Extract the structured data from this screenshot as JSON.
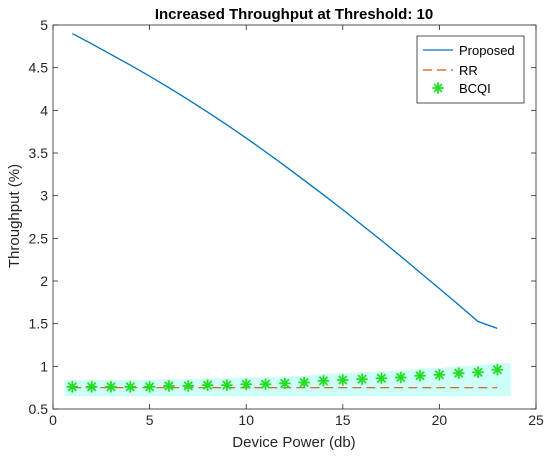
{
  "chart_data": {
    "type": "line",
    "title": "Increased Throughput at Threshold: 10",
    "xlabel": "Device Power (db)",
    "ylabel": "Throughput (%)",
    "xlim": [
      0,
      25
    ],
    "ylim": [
      0.5,
      5
    ],
    "xticks": [
      0,
      5,
      10,
      15,
      20,
      25
    ],
    "yticks": [
      0.5,
      1,
      1.5,
      2,
      2.5,
      3,
      3.5,
      4,
      4.5,
      5
    ],
    "xtick_labels": [
      "0",
      "5",
      "10",
      "15",
      "20",
      "25"
    ],
    "ytick_labels": [
      "0.5",
      "1",
      "1.5",
      "2",
      "2.5",
      "3",
      "3.5",
      "4",
      "4.5",
      "5"
    ],
    "grid": false,
    "legend_position": "top-right",
    "x": [
      1,
      2,
      3,
      4,
      5,
      6,
      7,
      8,
      9,
      10,
      11,
      12,
      13,
      14,
      15,
      16,
      17,
      18,
      19,
      20,
      21,
      22,
      23
    ],
    "series": [
      {
        "name": "Proposed",
        "style": "line",
        "color": "#0072BD",
        "values": [
          4.9,
          4.78,
          4.655,
          4.53,
          4.4,
          4.265,
          4.125,
          3.98,
          3.83,
          3.675,
          3.515,
          3.35,
          3.18,
          3.01,
          2.835,
          2.655,
          2.475,
          2.29,
          2.1,
          1.91,
          1.72,
          1.525,
          1.445
        ]
      },
      {
        "name": "RR",
        "style": "dashed",
        "color": "#D95319",
        "values": [
          0.75,
          0.75,
          0.75,
          0.75,
          0.75,
          0.75,
          0.75,
          0.75,
          0.75,
          0.75,
          0.75,
          0.75,
          0.75,
          0.75,
          0.75,
          0.75,
          0.75,
          0.75,
          0.75,
          0.75,
          0.75,
          0.75,
          0.75
        ]
      },
      {
        "name": "BCQI",
        "style": "markers",
        "marker": "asterisk",
        "color": "#22DD22",
        "values": [
          0.76,
          0.76,
          0.76,
          0.76,
          0.76,
          0.77,
          0.77,
          0.78,
          0.78,
          0.79,
          0.79,
          0.8,
          0.81,
          0.83,
          0.84,
          0.85,
          0.86,
          0.87,
          0.89,
          0.9,
          0.92,
          0.93,
          0.96
        ]
      }
    ],
    "highlight_band": {
      "color": "#CCFFF7",
      "x_range": [
        0.6,
        23.7
      ]
    }
  }
}
